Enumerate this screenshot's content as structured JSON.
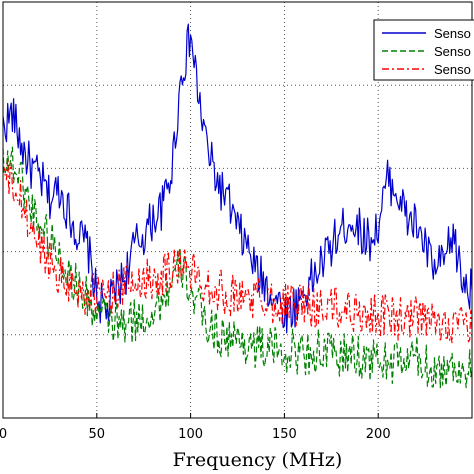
{
  "chart_data": {
    "type": "line",
    "title": "",
    "xlabel": "Frequency (MHz)",
    "ylabel": "",
    "xlim": [
      0,
      250
    ],
    "ylim": [
      0,
      15
    ],
    "x_ticks": [
      0,
      50,
      100,
      150,
      200
    ],
    "x_tick_labels": [
      "0",
      "50",
      "100",
      "150",
      "200"
    ],
    "grid": true,
    "grid_style": "dotted",
    "legend_placement": "top-right",
    "series": [
      {
        "name": "Senso",
        "color": "#0000cc",
        "style": "solid",
        "x": [
          0,
          5,
          10,
          15,
          20,
          25,
          30,
          35,
          40,
          45,
          50,
          55,
          60,
          65,
          70,
          75,
          80,
          85,
          90,
          95,
          100,
          105,
          110,
          115,
          120,
          125,
          130,
          135,
          140,
          145,
          150,
          155,
          160,
          165,
          170,
          175,
          180,
          185,
          190,
          195,
          200,
          205,
          210,
          215,
          220,
          225,
          230,
          235,
          240,
          245,
          250
        ],
        "y": [
          10.5,
          11.0,
          9.8,
          9.0,
          8.6,
          7.9,
          8.3,
          7.4,
          6.6,
          6.2,
          4.4,
          3.8,
          4.6,
          5.1,
          6.2,
          6.6,
          7.2,
          7.6,
          9.0,
          12.3,
          13.8,
          11.2,
          9.4,
          8.4,
          7.8,
          6.8,
          6.2,
          5.3,
          4.8,
          4.4,
          3.8,
          4.0,
          4.5,
          5.0,
          5.6,
          6.2,
          6.7,
          7.2,
          6.8,
          6.4,
          6.9,
          8.6,
          8.2,
          7.2,
          7.0,
          6.2,
          5.3,
          5.6,
          6.6,
          4.9,
          4.6
        ]
      },
      {
        "name": "Senso",
        "color": "#008000",
        "style": "dashed",
        "x": [
          0,
          5,
          10,
          15,
          20,
          25,
          30,
          35,
          40,
          45,
          50,
          55,
          60,
          65,
          70,
          75,
          80,
          85,
          90,
          95,
          100,
          105,
          110,
          115,
          120,
          125,
          130,
          135,
          140,
          145,
          150,
          155,
          160,
          165,
          170,
          175,
          180,
          185,
          190,
          195,
          200,
          205,
          210,
          215,
          220,
          225,
          230,
          235,
          240,
          245,
          250
        ],
        "y": [
          9.5,
          9.2,
          8.6,
          7.6,
          7.0,
          6.5,
          5.9,
          5.2,
          4.7,
          4.3,
          3.8,
          3.6,
          3.4,
          3.3,
          3.5,
          3.6,
          3.9,
          4.3,
          4.8,
          5.5,
          4.6,
          3.8,
          3.3,
          3.0,
          2.9,
          2.8,
          2.7,
          2.6,
          2.5,
          2.5,
          2.4,
          2.4,
          2.3,
          2.4,
          2.4,
          2.3,
          2.2,
          2.3,
          2.2,
          2.1,
          2.1,
          2.0,
          2.0,
          2.1,
          2.2,
          1.9,
          1.8,
          1.7,
          1.9,
          1.8,
          1.7
        ]
      },
      {
        "name": "Senso",
        "color": "#ff0000",
        "style": "dashdot",
        "x": [
          0,
          5,
          10,
          15,
          20,
          25,
          30,
          35,
          40,
          45,
          50,
          55,
          60,
          65,
          70,
          75,
          80,
          85,
          90,
          95,
          100,
          105,
          110,
          115,
          120,
          125,
          130,
          135,
          140,
          145,
          150,
          155,
          160,
          165,
          170,
          175,
          180,
          185,
          190,
          195,
          200,
          205,
          210,
          215,
          220,
          225,
          230,
          235,
          240,
          245,
          250
        ],
        "y": [
          8.8,
          8.4,
          7.7,
          6.8,
          6.2,
          5.7,
          5.2,
          4.9,
          4.6,
          4.5,
          4.4,
          4.5,
          4.6,
          4.8,
          4.9,
          5.0,
          5.1,
          5.2,
          5.4,
          5.6,
          5.3,
          5.0,
          4.8,
          4.6,
          4.5,
          4.4,
          4.4,
          4.3,
          4.3,
          4.2,
          4.2,
          4.1,
          4.1,
          4.0,
          4.0,
          4.0,
          3.9,
          3.9,
          3.8,
          3.8,
          3.7,
          3.7,
          3.6,
          3.5,
          3.6,
          3.5,
          3.4,
          3.4,
          3.5,
          3.3,
          3.2
        ]
      }
    ]
  }
}
